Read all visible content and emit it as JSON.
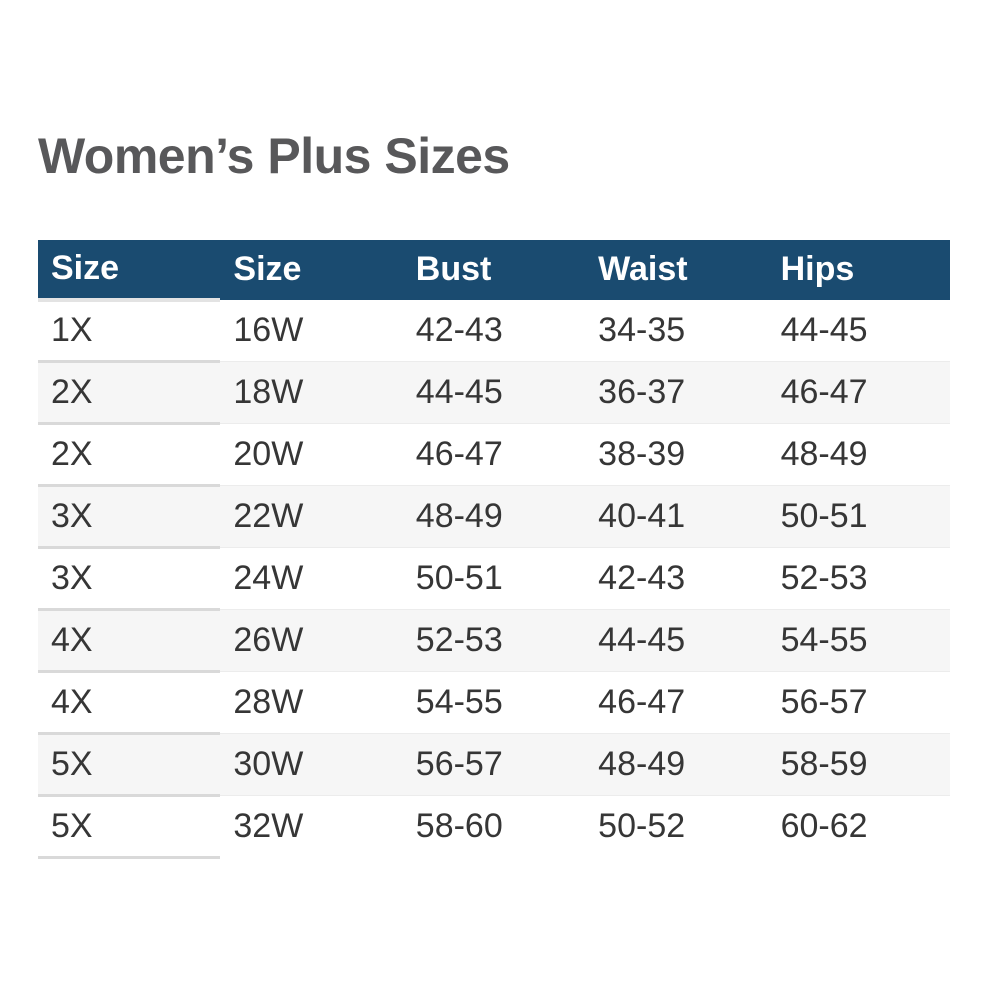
{
  "title": "Women’s Plus Sizes",
  "colors": {
    "header_bg": "#1A4B70",
    "header_text": "#FFFFFF",
    "stripe_bg": "#F6F6F6",
    "body_text": "#363636",
    "title_text": "#58585A"
  },
  "table": {
    "headers": [
      "Size",
      "Size",
      "Bust",
      "Waist",
      "Hips"
    ],
    "rows": [
      [
        "1X",
        "16W",
        "42-43",
        "34-35",
        "44-45"
      ],
      [
        "2X",
        "18W",
        "44-45",
        "36-37",
        "46-47"
      ],
      [
        "2X",
        "20W",
        "46-47",
        "38-39",
        "48-49"
      ],
      [
        "3X",
        "22W",
        "48-49",
        "40-41",
        "50-51"
      ],
      [
        "3X",
        "24W",
        "50-51",
        "42-43",
        "52-53"
      ],
      [
        "4X",
        "26W",
        "52-53",
        "44-45",
        "54-55"
      ],
      [
        "4X",
        "28W",
        "54-55",
        "46-47",
        "56-57"
      ],
      [
        "5X",
        "30W",
        "56-57",
        "48-49",
        "58-59"
      ],
      [
        "5X",
        "32W",
        "58-60",
        "50-52",
        "60-62"
      ]
    ]
  }
}
